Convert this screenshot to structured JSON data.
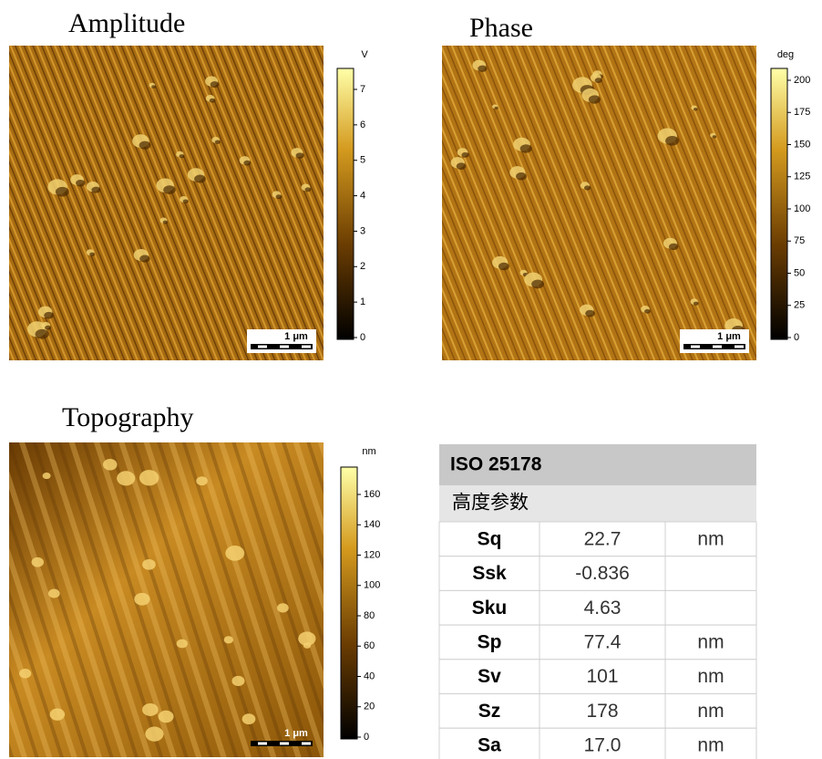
{
  "panels": [
    {
      "title": "Amplitude",
      "unit": "V",
      "colorbar_ticks": [
        0,
        1,
        2,
        3,
        4,
        5,
        6,
        7
      ],
      "scale_bar": "1 μm"
    },
    {
      "title": "Phase",
      "unit": "deg",
      "colorbar_ticks": [
        0,
        25,
        50,
        75,
        100,
        125,
        150,
        175,
        200
      ],
      "scale_bar": "1 μm"
    },
    {
      "title": "Topography",
      "unit": "nm",
      "colorbar_ticks": [
        0,
        20,
        40,
        60,
        80,
        100,
        120,
        140,
        160
      ],
      "scale_bar": "1 μm"
    }
  ],
  "table": {
    "title": "ISO 25178",
    "subtitle": "高度参数",
    "rows": [
      [
        "Sq",
        "22.7",
        "nm"
      ],
      [
        "Ssk",
        "-0.836"
      ],
      [
        "Sku",
        "4.63"
      ],
      [
        "Sp",
        "77.4",
        "nm"
      ],
      [
        "Sv",
        "101",
        "nm"
      ],
      [
        "Sz",
        "178",
        "nm"
      ],
      [
        "Sa",
        "17.0",
        "nm"
      ]
    ]
  }
}
